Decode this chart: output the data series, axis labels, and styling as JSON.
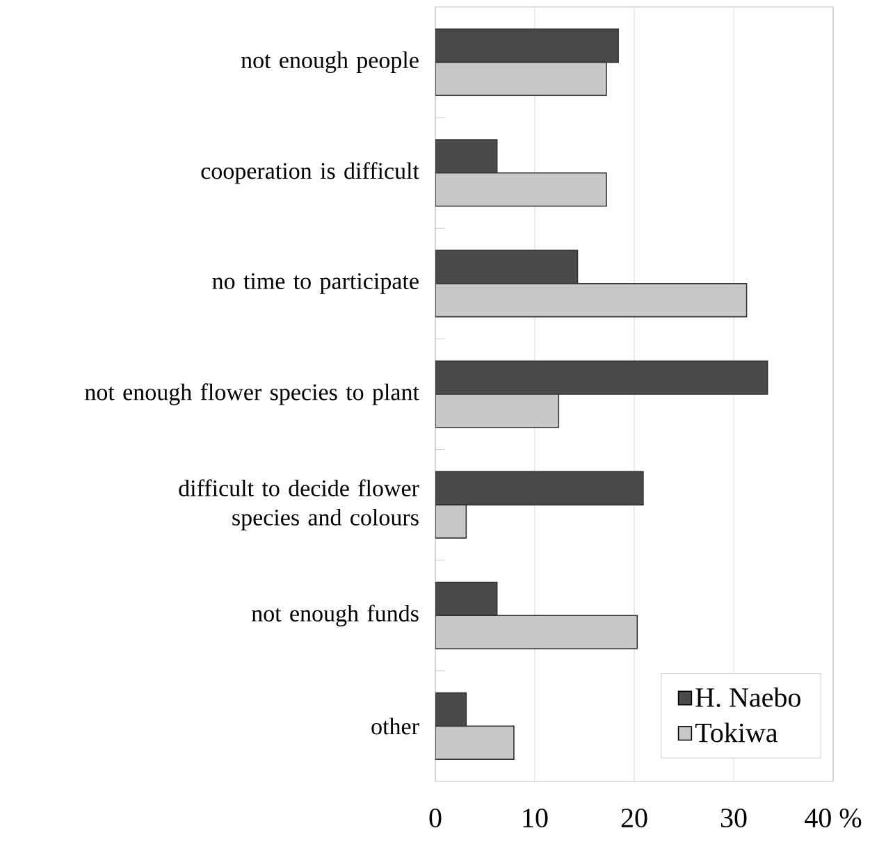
{
  "chart_data": {
    "type": "bar",
    "orientation": "horizontal",
    "categories": [
      "not enough people",
      "cooperation is difficult",
      "no time to participate",
      "not enough flower species to plant",
      "difficult to decide flower species and colours",
      "not enough funds",
      "other"
    ],
    "series": [
      {
        "name": "H. Naebo",
        "color": "#4a4a4a",
        "values": [
          18.4,
          6.2,
          14.3,
          33.4,
          20.9,
          6.2,
          3.1
        ]
      },
      {
        "name": "Tokiwa",
        "color": "#c8c8c8",
        "values": [
          17.2,
          17.2,
          31.3,
          12.4,
          3.1,
          20.3,
          7.9
        ]
      }
    ],
    "xlim": [
      0,
      40
    ],
    "xticks": [
      0,
      10,
      20,
      30,
      {
        "value": 40,
        "label": "40 %"
      }
    ],
    "grid": "x",
    "legend": "bottom right"
  }
}
